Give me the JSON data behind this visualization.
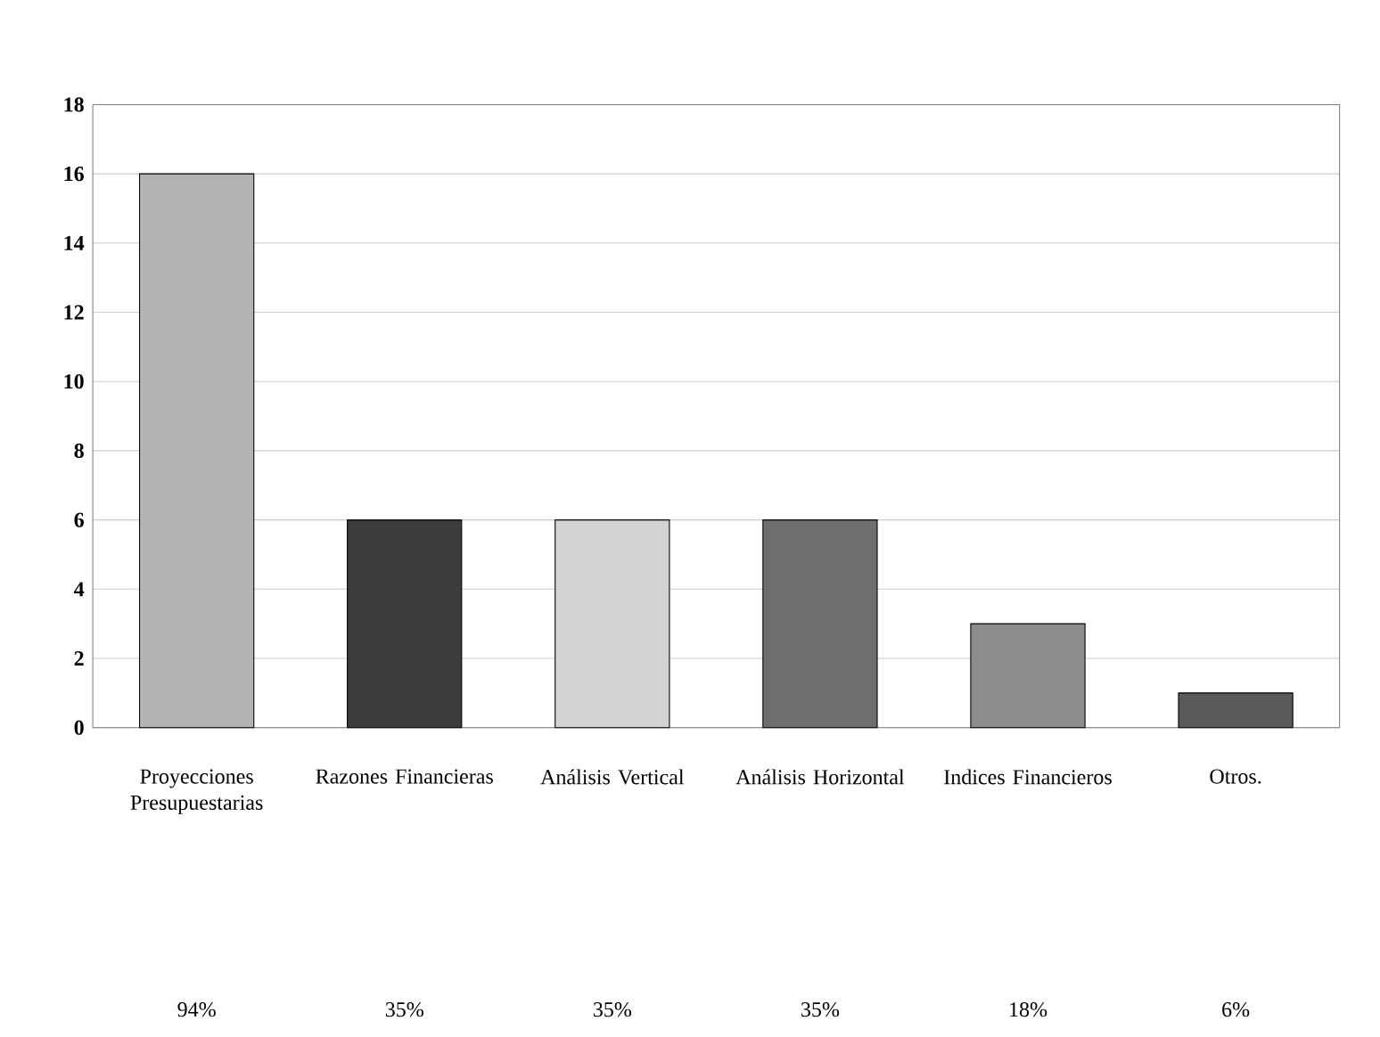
{
  "chart_data": {
    "type": "bar",
    "categories": [
      "Proyecciones Presupuestarias",
      "Razones Financieras",
      "Análisis Vertical",
      "Análisis Horizontal",
      "Indices Financieros",
      "Otros."
    ],
    "values": [
      16,
      6,
      6,
      6,
      3,
      1
    ],
    "colors": [
      "#b4b4b4",
      "#3c3c3c",
      "#d2d2d2",
      "#6e6e6e",
      "#8c8c8c",
      "#5a5a5a"
    ],
    "annotations": [
      "94%",
      "35%",
      "35%",
      "35%",
      "18%",
      "6%"
    ],
    "ylim": [
      0,
      18
    ],
    "yticks": [
      0,
      2,
      4,
      6,
      8,
      10,
      12,
      14,
      16,
      18
    ],
    "grid": "y"
  }
}
